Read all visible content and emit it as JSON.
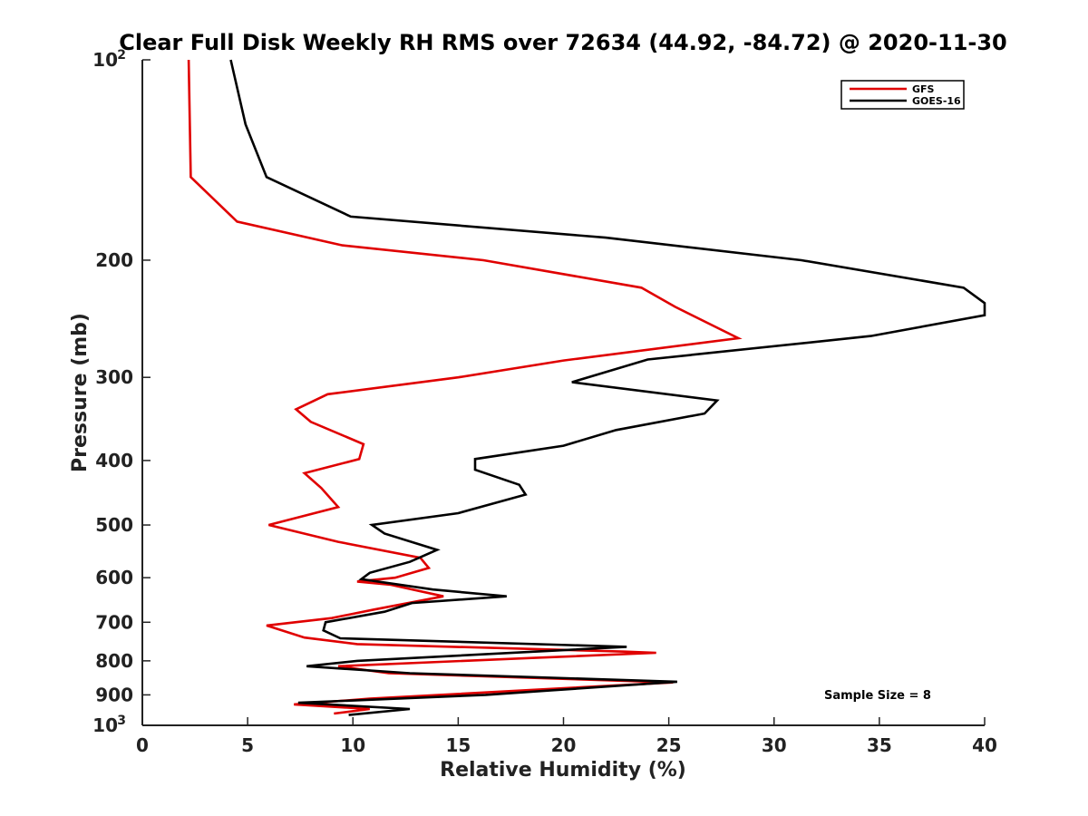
{
  "chart_data": {
    "type": "line",
    "title": "Clear Full Disk Weekly RH RMS over 72634 (44.92, -84.72) @ 2020-11-30",
    "xlabel": "Relative Humidity (%)",
    "ylabel": "Pressure (mb)",
    "xlim": [
      0,
      40
    ],
    "ylim": [
      100,
      1000
    ],
    "yscale": "log",
    "y_reversed": true,
    "x_ticks": [
      "0",
      "5",
      "10",
      "15",
      "20",
      "25",
      "30",
      "35",
      "40"
    ],
    "y_ticks": [
      {
        "value": 100,
        "base": "10",
        "exp": "2"
      },
      {
        "value": 200,
        "label": "200"
      },
      {
        "value": 300,
        "label": "300"
      },
      {
        "value": 400,
        "label": "400"
      },
      {
        "value": 500,
        "label": "500"
      },
      {
        "value": 600,
        "label": "600"
      },
      {
        "value": 700,
        "label": "700"
      },
      {
        "value": 800,
        "label": "800"
      },
      {
        "value": 900,
        "label": "900"
      },
      {
        "value": 1000,
        "base": "10",
        "exp": "3"
      }
    ],
    "legend_position": "top-right",
    "annotation": "Sample Size = 8",
    "series": [
      {
        "name": "GFS",
        "color": "#e00000",
        "points": [
          [
            2.2,
            100
          ],
          [
            2.3,
            150
          ],
          [
            4.5,
            175
          ],
          [
            9.5,
            190
          ],
          [
            16.2,
            200
          ],
          [
            23.7,
            220
          ],
          [
            25.3,
            235
          ],
          [
            28.3,
            262
          ],
          [
            20.0,
            283
          ],
          [
            15.0,
            300
          ],
          [
            8.8,
            318
          ],
          [
            7.3,
            335
          ],
          [
            8.0,
            350
          ],
          [
            10.5,
            378
          ],
          [
            10.3,
            398
          ],
          [
            7.7,
            418
          ],
          [
            8.5,
            440
          ],
          [
            9.3,
            470
          ],
          [
            6.0,
            500
          ],
          [
            9.3,
            530
          ],
          [
            13.2,
            560
          ],
          [
            13.6,
            580
          ],
          [
            12.0,
            600
          ],
          [
            10.2,
            608
          ],
          [
            11.8,
            615
          ],
          [
            14.3,
            640
          ],
          [
            11.0,
            670
          ],
          [
            9.0,
            690
          ],
          [
            5.9,
            708
          ],
          [
            7.7,
            738
          ],
          [
            10.2,
            755
          ],
          [
            22.9,
            775
          ],
          [
            24.4,
            778
          ],
          [
            18.5,
            792
          ],
          [
            9.3,
            815
          ],
          [
            11.7,
            835
          ],
          [
            25.2,
            862
          ],
          [
            19.8,
            880
          ],
          [
            10.8,
            912
          ],
          [
            7.2,
            930
          ],
          [
            10.8,
            945
          ],
          [
            9.1,
            960
          ]
        ]
      },
      {
        "name": "GOES-16",
        "color": "#000000",
        "points": [
          [
            4.2,
            100
          ],
          [
            4.9,
            125
          ],
          [
            5.9,
            150
          ],
          [
            9.9,
            172
          ],
          [
            22.0,
            185
          ],
          [
            31.3,
            200
          ],
          [
            39.0,
            220
          ],
          [
            40.0,
            232
          ],
          [
            40.0,
            242
          ],
          [
            34.6,
            260
          ],
          [
            24.0,
            282
          ],
          [
            20.4,
            305
          ],
          [
            27.3,
            325
          ],
          [
            26.7,
            340
          ],
          [
            22.5,
            360
          ],
          [
            20.0,
            380
          ],
          [
            15.8,
            398
          ],
          [
            15.8,
            413
          ],
          [
            17.9,
            435
          ],
          [
            18.2,
            450
          ],
          [
            15.0,
            480
          ],
          [
            10.9,
            500
          ],
          [
            11.5,
            515
          ],
          [
            14.0,
            545
          ],
          [
            12.7,
            568
          ],
          [
            10.8,
            590
          ],
          [
            10.4,
            603
          ],
          [
            13.8,
            625
          ],
          [
            17.3,
            640
          ],
          [
            12.8,
            655
          ],
          [
            11.5,
            675
          ],
          [
            8.7,
            700
          ],
          [
            8.6,
            720
          ],
          [
            9.4,
            740
          ],
          [
            23.0,
            762
          ],
          [
            10.2,
            800
          ],
          [
            7.8,
            815
          ],
          [
            12.7,
            835
          ],
          [
            25.4,
            860
          ],
          [
            16.3,
            900
          ],
          [
            7.4,
            925
          ],
          [
            12.7,
            945
          ],
          [
            9.8,
            965
          ]
        ]
      }
    ]
  }
}
